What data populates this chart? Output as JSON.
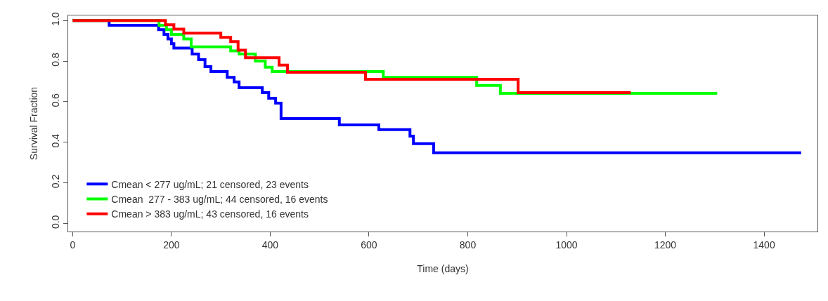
{
  "chart_data": {
    "type": "step",
    "xlabel": "Time (days)",
    "ylabel": "Survival Fraction",
    "xlim": [
      -9,
      1508
    ],
    "ylim": [
      -0.04,
      1.025
    ],
    "xticks": [
      0,
      200,
      400,
      600,
      800,
      1000,
      1200,
      1400
    ],
    "yticks": [
      {
        "value": 0,
        "label": "0.0"
      },
      {
        "value": 0.2,
        "label": "0.2"
      },
      {
        "value": 0.4,
        "label": "0.4"
      },
      {
        "value": 0.6,
        "label": "0.6"
      },
      {
        "value": 0.8,
        "label": "0.8"
      },
      {
        "value": 1,
        "label": "1.0"
      }
    ],
    "legend": "bottom left",
    "marker": "none",
    "line_style": "solid",
    "series": [
      {
        "name": "Cmean < 277 ug/mL; 21 censored, 23 events",
        "color": "#0000ff",
        "x": [
          0,
          74,
          174,
          185,
          193,
          200,
          205,
          242,
          255,
          268,
          280,
          313,
          327,
          337,
          384,
          397,
          411,
          422,
          540,
          620,
          683,
          690,
          731,
          1475
        ],
        "values": [
          1.0,
          0.977,
          0.955,
          0.932,
          0.909,
          0.886,
          0.864,
          0.835,
          0.807,
          0.773,
          0.748,
          0.72,
          0.697,
          0.669,
          0.645,
          0.617,
          0.593,
          0.517,
          0.486,
          0.462,
          0.43,
          0.393,
          0.348,
          0.348
        ]
      },
      {
        "name": "Cmean  277 - 383 ug/mL; 44 censored, 16 events",
        "color": "#00ff00",
        "x": [
          0,
          175,
          190,
          200,
          225,
          240,
          320,
          337,
          370,
          390,
          404,
          629,
          818,
          866,
          1305
        ],
        "values": [
          1.0,
          0.977,
          0.955,
          0.932,
          0.909,
          0.87,
          0.85,
          0.835,
          0.8,
          0.77,
          0.748,
          0.72,
          0.68,
          0.641,
          0.641
        ]
      },
      {
        "name": "Cmean > 383 ug/mL; 43 censored, 16 events",
        "color": "#ff0000",
        "x": [
          0,
          188,
          205,
          225,
          300,
          320,
          335,
          350,
          418,
          435,
          593,
          902,
          1130
        ],
        "values": [
          1.0,
          0.979,
          0.958,
          0.938,
          0.917,
          0.896,
          0.854,
          0.817,
          0.78,
          0.745,
          0.71,
          0.645,
          0.645
        ]
      }
    ]
  }
}
